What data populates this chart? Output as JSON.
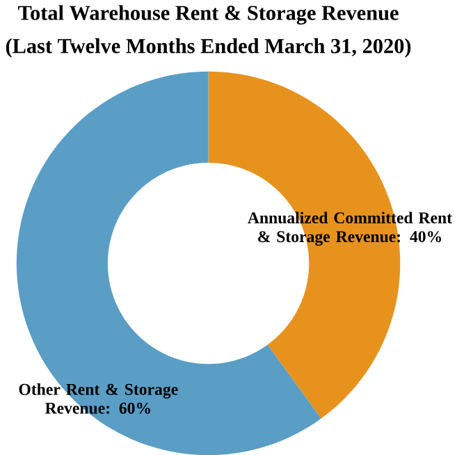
{
  "chart_data": {
    "type": "donut",
    "title": "Total Warehouse Rent & Storage Revenue",
    "subtitle": "(Last Twelve Months Ended March 31, 2020)",
    "categories": [
      "Annualized Committed Rent & Storage Revenue",
      "Other Rent & Storage Revenue"
    ],
    "values": [
      40,
      60
    ],
    "colors": [
      "#e8921e",
      "#5a9ec6"
    ],
    "value_labels": [
      ": 40%",
      ": 60%"
    ]
  }
}
